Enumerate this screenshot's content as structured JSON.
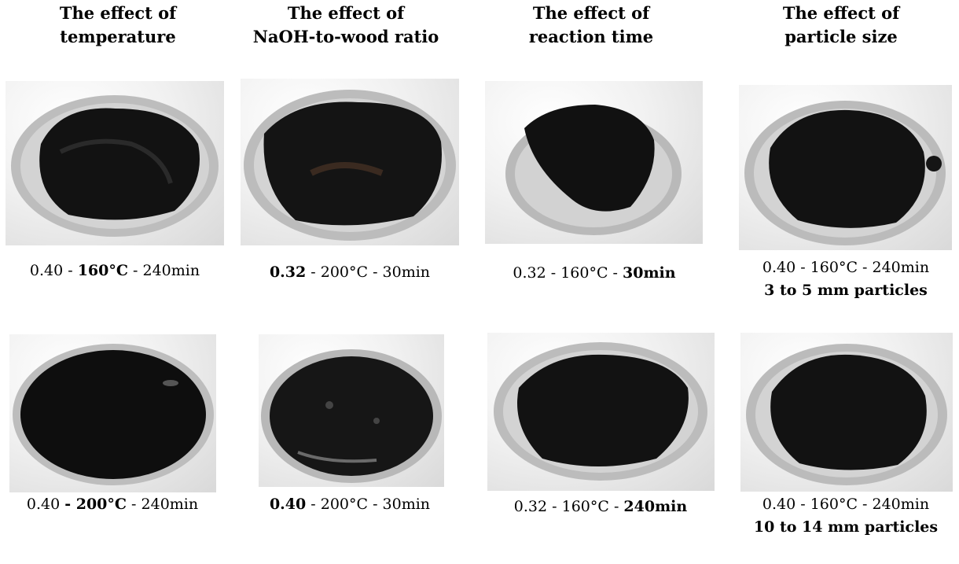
{
  "columns": [
    {
      "header_1": "The effect of",
      "header_2": "temperature"
    },
    {
      "header_1": "The effect of",
      "header_2": "NaOH-to-wood ratio"
    },
    {
      "header_1": "The effect of",
      "header_2": "reaction time"
    },
    {
      "header_1": "The effect of",
      "header_2": "particle size"
    }
  ],
  "captions": {
    "r1c1": {
      "a": "0.40 - ",
      "b": "160°C",
      "c": " - 240min"
    },
    "r1c2": {
      "a": "",
      "b": "0.32",
      "c": " - 200°C - 30min"
    },
    "r1c3": {
      "a": "0.32 - 160°C - ",
      "b": "30min",
      "c": ""
    },
    "r1c4": {
      "a": "0.40 - 160°C - 240min",
      "b": "",
      "c": "",
      "line2": "3 to 5 mm particles"
    },
    "r2c1": {
      "a": "0.40 ",
      "b": "- 200°C",
      "c": " - 240min"
    },
    "r2c2": {
      "a": "",
      "b": "0.40",
      "c": " - 200°C - 30min"
    },
    "r2c3": {
      "a": "0.32 - 160°C - ",
      "b": "240min",
      "c": ""
    },
    "r2c4": {
      "a": "0.40 - 160°C - 240min",
      "b": "",
      "c": "",
      "line2": "10 to 14 mm particles"
    }
  },
  "colors": {
    "background": "#ffffff",
    "dish_rim": "#b8b8b8",
    "dish_inner": "#d2d2d2",
    "residue": "#101010",
    "cloth": "#ececec"
  }
}
